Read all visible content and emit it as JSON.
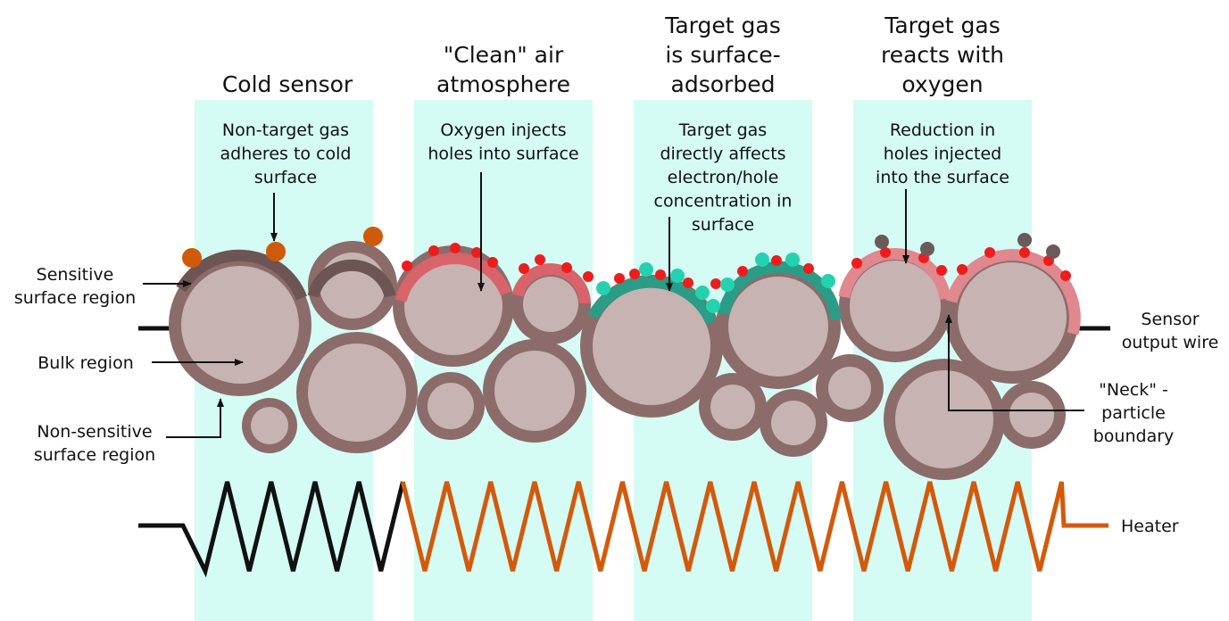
{
  "colors": {
    "background": "#ffffff",
    "stage_band": "#d4fbf4",
    "particle_ring": "#8b6c6a",
    "particle_core": "#c6b3b2",
    "cold_surface": "#6d5553",
    "clean_surface": "#d9636a",
    "adsorbed_surface": "#2b9c86",
    "reacted_surface": "#e0888d",
    "non_target_gas": "#cf5a0a",
    "oxygen": "#ee1c1c",
    "target_gas": "#25d2b0",
    "reaction_product": "#6a5a5a",
    "wire": "#111111",
    "heater_cold": "#111111",
    "heater_hot": "#d4590a",
    "arrow": "#111111"
  },
  "stages": [
    {
      "title": [
        "Cold sensor"
      ],
      "description": [
        "Non-target gas",
        "adheres to cold",
        "surface"
      ]
    },
    {
      "title": [
        "\"Clean\" air",
        "atmosphere"
      ],
      "description": [
        "Oxygen injects",
        "holes into surface"
      ]
    },
    {
      "title": [
        "Target gas",
        "is surface-",
        "adsorbed"
      ],
      "description": [
        "Target gas",
        "directly affects",
        "electron/hole",
        "concentration in",
        "surface"
      ]
    },
    {
      "title": [
        "Target gas",
        "reacts with",
        "oxygen"
      ],
      "description": [
        "Reduction in",
        "holes injected",
        "into the surface"
      ]
    }
  ],
  "labels": {
    "sensitive_surface": [
      "Sensitive",
      "surface region"
    ],
    "bulk": [
      "Bulk region"
    ],
    "non_sensitive_surface": [
      "Non-sensitive",
      "surface region"
    ],
    "sensor_output": [
      "Sensor",
      "output wire"
    ],
    "neck": [
      "\"Neck\" -",
      "particle",
      "boundary"
    ],
    "heater": [
      "Heater"
    ]
  }
}
